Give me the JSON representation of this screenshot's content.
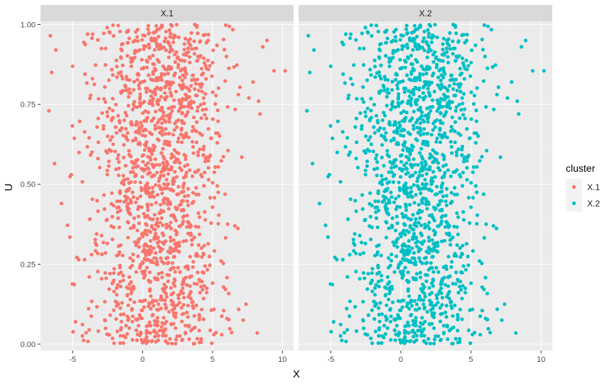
{
  "chart_data": {
    "type": "scatter",
    "xlabel": "X",
    "ylabel": "U",
    "xlim": [
      -7.3,
      10.8
    ],
    "ylim": [
      -0.02,
      1.01
    ],
    "x_ticks": [
      -5,
      0,
      5,
      10
    ],
    "x_tick_labels": [
      "-5",
      "0",
      "5",
      "10"
    ],
    "y_ticks": [
      0,
      0.25,
      0.5,
      0.75,
      1
    ],
    "y_tick_labels": [
      "0.00",
      "0.25",
      "0.50",
      "0.75",
      "1.00"
    ],
    "grid": true,
    "legend_position": "right",
    "legend": {
      "title": "cluster",
      "entries": [
        {
          "name": "X.1",
          "color": "#F8766D"
        },
        {
          "name": "X.2",
          "color": "#00BFC4"
        }
      ]
    },
    "panels": [
      {
        "strip_label": "X.1",
        "series_name": "X.1",
        "color": "#F8766D"
      },
      {
        "strip_label": "X.2",
        "series_name": "X.2",
        "color": "#00BFC4"
      }
    ],
    "point_distribution": {
      "n_points_per_panel": 1500,
      "x_center": 1.0,
      "x_spread_sd": 2.3,
      "u_range": [
        0,
        1
      ]
    },
    "notable_points": [
      {
        "x": 10.2,
        "y": 0.855
      },
      {
        "x": 9.4,
        "y": 0.855
      },
      {
        "x": 8.9,
        "y": 0.95
      },
      {
        "x": 8.6,
        "y": 0.93
      },
      {
        "x": 8.4,
        "y": 0.72
      },
      {
        "x": 8.3,
        "y": 0.76
      },
      {
        "x": 7.9,
        "y": 0.82
      },
      {
        "x": 7.6,
        "y": 0.77
      },
      {
        "x": 7.1,
        "y": 0.585
      },
      {
        "x": 6.6,
        "y": 0.37
      },
      {
        "x": 7.4,
        "y": 0.125
      },
      {
        "x": 7.2,
        "y": 0.075
      },
      {
        "x": 8.2,
        "y": 0.035
      },
      {
        "x": 5.8,
        "y": 0.105
      },
      {
        "x": 5.1,
        "y": 0.03
      },
      {
        "x": -6.6,
        "y": 0.965
      },
      {
        "x": -6.5,
        "y": 0.85
      },
      {
        "x": -6.2,
        "y": 0.92
      },
      {
        "x": -6.3,
        "y": 0.565
      },
      {
        "x": -6.7,
        "y": 0.73
      },
      {
        "x": -5.8,
        "y": 0.44
      },
      {
        "x": -5.2,
        "y": 0.335
      },
      {
        "x": -4.8,
        "y": 0.07
      },
      {
        "x": -5.1,
        "y": 0.53
      }
    ]
  }
}
